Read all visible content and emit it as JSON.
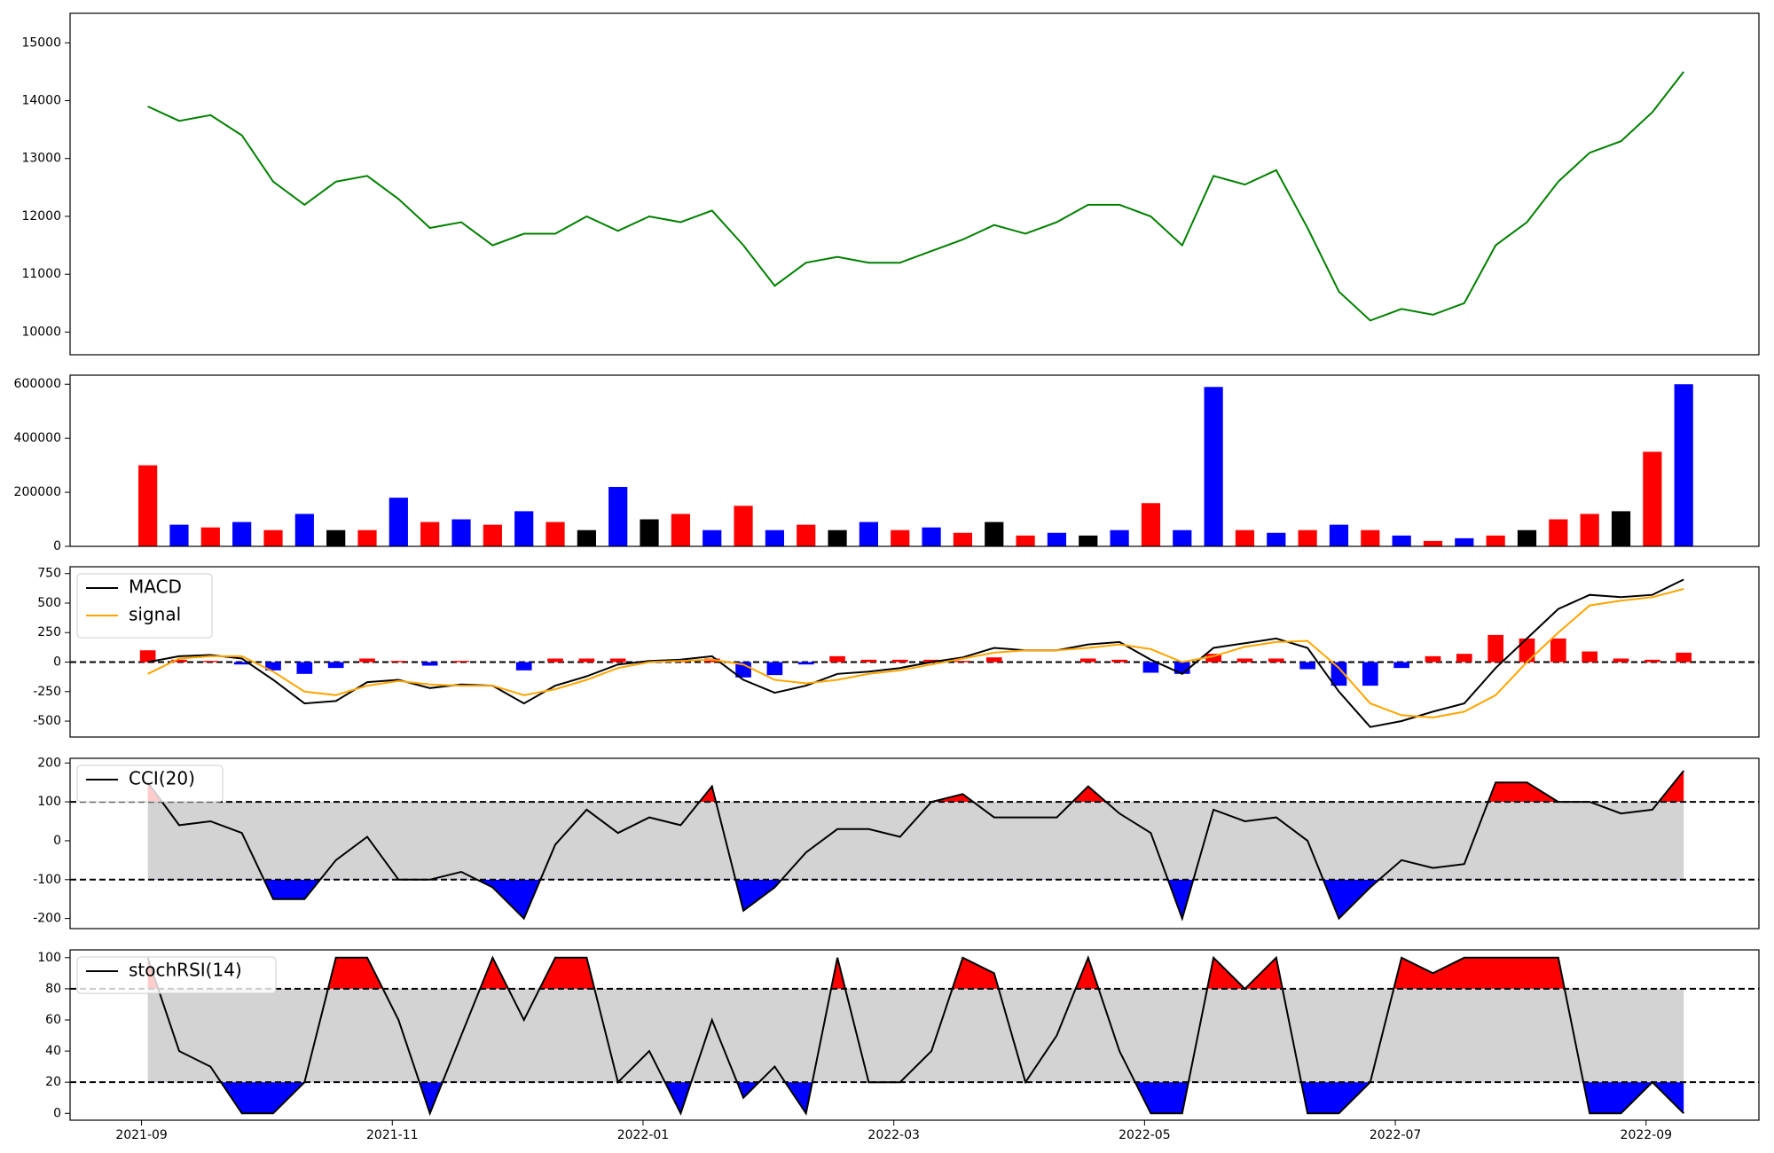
{
  "chart_data": [
    {
      "type": "line",
      "color": "#008000",
      "x": [
        0.05,
        0.3,
        0.55,
        0.8,
        1.05,
        1.3,
        1.55,
        1.8,
        2.05,
        2.3,
        2.55,
        2.8,
        3.05,
        3.3,
        3.55,
        3.8,
        4.05,
        4.3,
        4.55,
        4.8,
        5.05,
        5.3,
        5.55,
        5.8,
        6.05,
        6.3,
        6.55,
        6.8,
        7.05,
        7.3,
        7.55,
        7.8,
        8.05,
        8.3,
        8.55,
        8.8,
        9.05,
        9.3,
        9.55,
        9.8,
        10.05,
        10.3,
        10.55,
        10.8,
        11.05,
        11.3,
        11.55,
        11.8,
        12.05,
        12.3
      ],
      "xlim": [
        -0.57,
        12.9
      ],
      "values": [
        13900,
        13650,
        13750,
        13400,
        12600,
        12200,
        12600,
        12700,
        12300,
        11800,
        11900,
        11500,
        11700,
        11700,
        12000,
        11750,
        12000,
        11900,
        12100,
        11500,
        10800,
        11200,
        11300,
        11200,
        11200,
        11400,
        11600,
        11850,
        11700,
        11900,
        12200,
        12200,
        12000,
        11500,
        12700,
        12550,
        12800,
        11800,
        10700,
        10200,
        10400,
        10300,
        10500,
        11500,
        11900,
        12600,
        13100,
        13300,
        13800,
        14500
      ],
      "ylim": [
        9608,
        15510
      ],
      "yticks": [
        10000,
        11000,
        12000,
        13000,
        14000,
        15000
      ]
    },
    {
      "type": "bar",
      "values": [
        300000,
        80000,
        70000,
        90000,
        60000,
        120000,
        60000,
        60000,
        180000,
        90000,
        100000,
        80000,
        130000,
        90000,
        60000,
        220000,
        100000,
        120000,
        60000,
        150000,
        60000,
        80000,
        60000,
        90000,
        60000,
        70000,
        50000,
        90000,
        40000,
        50000,
        40000,
        60000,
        160000,
        60000,
        590000,
        60000,
        50000,
        60000,
        80000,
        60000,
        40000,
        20000,
        30000,
        40000,
        60000,
        100000,
        120000,
        130000,
        350000,
        600000
      ],
      "colors": [
        "#ff0000",
        "#0000ff",
        "#ff0000",
        "#0000ff",
        "#ff0000",
        "#0000ff",
        "#000000",
        "#ff0000",
        "#0000ff",
        "#ff0000",
        "#0000ff",
        "#ff0000",
        "#0000ff",
        "#ff0000",
        "#000000",
        "#0000ff",
        "#000000",
        "#ff0000",
        "#0000ff",
        "#ff0000",
        "#0000ff",
        "#ff0000",
        "#000000",
        "#0000ff",
        "#ff0000",
        "#0000ff",
        "#ff0000",
        "#000000",
        "#ff0000",
        "#0000ff",
        "#000000",
        "#0000ff",
        "#ff0000",
        "#0000ff",
        "#0000ff",
        "#ff0000",
        "#0000ff",
        "#ff0000",
        "#0000ff",
        "#ff0000",
        "#0000ff",
        "#ff0000",
        "#0000ff",
        "#ff0000",
        "#000000",
        "#ff0000",
        "#ff0000",
        "#000000",
        "#ff0000",
        "#0000ff"
      ],
      "ylim": [
        0,
        633600
      ],
      "yticks": [
        0,
        200000,
        400000,
        600000
      ]
    },
    {
      "type": "macd",
      "legend": true,
      "hline": 0,
      "series": [
        {
          "name": "MACD",
          "color": "#000000",
          "values": [
            0,
            50,
            60,
            30,
            -150,
            -350,
            -330,
            -170,
            -150,
            -220,
            -190,
            -200,
            -350,
            -200,
            -120,
            -20,
            10,
            20,
            50,
            -150,
            -260,
            -200,
            -100,
            -80,
            -50,
            0,
            40,
            120,
            100,
            100,
            150,
            170,
            20,
            -100,
            120,
            160,
            200,
            120,
            -250,
            -550,
            -500,
            -420,
            -350,
            -50,
            200,
            450,
            570,
            550,
            570,
            700
          ]
        },
        {
          "name": "signal",
          "color": "#ffa500",
          "values": [
            -100,
            30,
            50,
            50,
            -80,
            -250,
            -280,
            -200,
            -160,
            -190,
            -200,
            -200,
            -280,
            -230,
            -150,
            -50,
            0,
            10,
            20,
            -20,
            -150,
            -180,
            -150,
            -100,
            -70,
            -20,
            30,
            80,
            100,
            100,
            120,
            150,
            110,
            0,
            50,
            130,
            170,
            180,
            -50,
            -350,
            -450,
            -470,
            -420,
            -280,
            0,
            250,
            480,
            520,
            550,
            620
          ]
        }
      ],
      "histogram": {
        "values": [
          100,
          20,
          10,
          -20,
          -70,
          -100,
          -50,
          30,
          10,
          -30,
          10,
          0,
          -70,
          30,
          30,
          30,
          10,
          10,
          30,
          -130,
          -110,
          -20,
          50,
          20,
          20,
          20,
          10,
          40,
          0,
          0,
          30,
          20,
          -90,
          -100,
          70,
          30,
          30,
          -60,
          -200,
          -200,
          -50,
          50,
          70,
          230,
          200,
          200,
          90,
          30,
          20,
          80
        ],
        "colors": [
          "#ff0000",
          "#0000ff"
        ]
      },
      "ylim": [
        -635,
        808
      ],
      "yticks": [
        -500,
        -250,
        0,
        250,
        500,
        750
      ]
    },
    {
      "type": "oscillator",
      "legend": true,
      "bands": [
        -100,
        100
      ],
      "series": [
        {
          "name": "CCI(20)",
          "color": "#000000",
          "values": [
            150,
            40,
            50,
            20,
            -150,
            -150,
            -50,
            10,
            -100,
            -100,
            -80,
            -120,
            -200,
            -10,
            80,
            20,
            60,
            40,
            140,
            -180,
            -120,
            -30,
            30,
            30,
            10,
            100,
            120,
            60,
            60,
            60,
            140,
            70,
            20,
            -200,
            80,
            50,
            60,
            0,
            -200,
            -120,
            -50,
            -70,
            -60,
            150,
            150,
            100,
            100,
            70,
            80,
            180
          ]
        }
      ],
      "ylim": [
        -226,
        212
      ],
      "yticks": [
        -200,
        -100,
        0,
        100,
        200
      ]
    },
    {
      "type": "oscillator",
      "legend": true,
      "bands": [
        20,
        80
      ],
      "series": [
        {
          "name": "stochRSI(14)",
          "color": "#000000",
          "values": [
            100,
            40,
            30,
            0,
            0,
            20,
            100,
            100,
            60,
            0,
            50,
            100,
            60,
            100,
            100,
            20,
            40,
            0,
            60,
            10,
            30,
            0,
            100,
            20,
            20,
            40,
            100,
            90,
            20,
            50,
            100,
            40,
            0,
            0,
            100,
            80,
            100,
            0,
            0,
            20,
            100,
            90,
            100,
            100,
            100,
            100,
            0,
            0,
            20,
            0
          ]
        }
      ],
      "ylim": [
        -4.4,
        105
      ],
      "yticks": [
        0,
        20,
        40,
        60,
        80,
        100
      ],
      "xticks": [
        {
          "value": 0,
          "label": "2021-09"
        },
        {
          "value": 2,
          "label": "2021-11"
        },
        {
          "value": 4,
          "label": "2022-01"
        },
        {
          "value": 6,
          "label": "2022-03"
        },
        {
          "value": 8,
          "label": "2022-05"
        },
        {
          "value": 10,
          "label": "2022-07"
        },
        {
          "value": 12,
          "label": "2022-09"
        }
      ]
    }
  ]
}
